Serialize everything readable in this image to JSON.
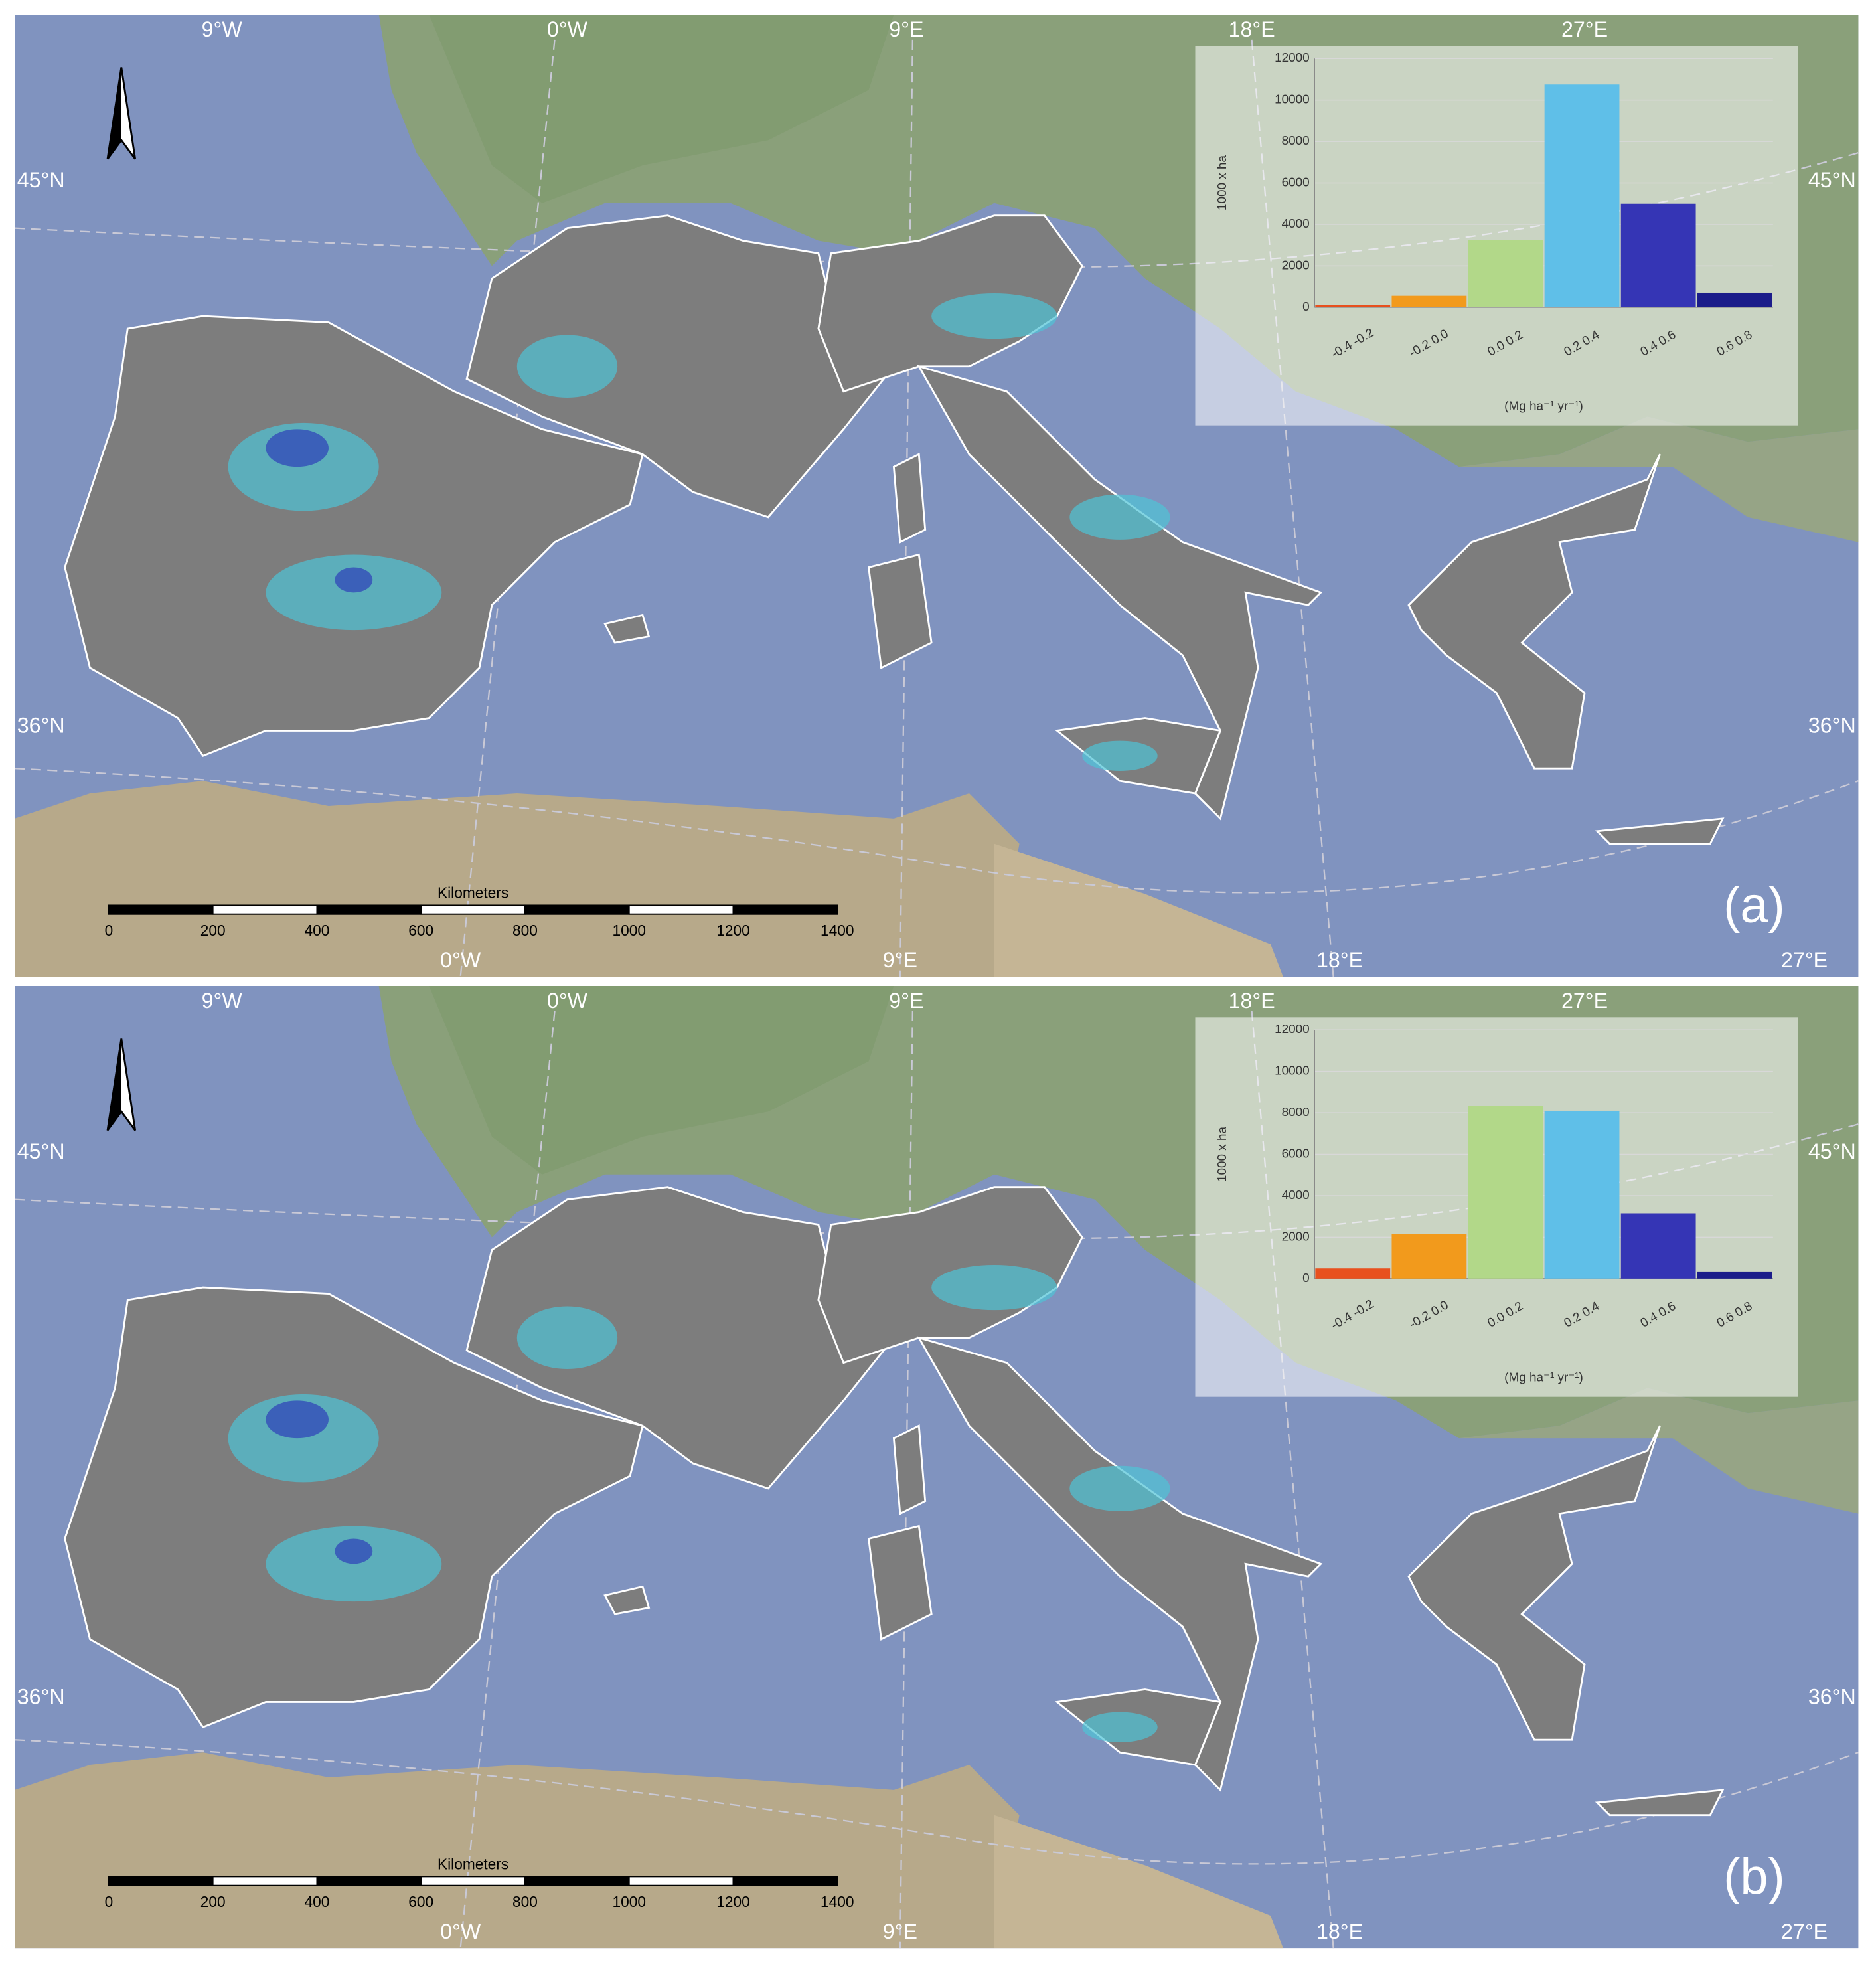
{
  "chart_data": [
    {
      "type": "bar",
      "categories": [
        "-0.4 -0.2",
        "-0.2 0.0",
        "0.0 0.2",
        "0.2 0.4",
        "0.4 0.6",
        "0.6 0.8"
      ],
      "values": [
        100,
        550,
        3250,
        10750,
        5000,
        700
      ],
      "colors": [
        "#e8501e",
        "#f29a1c",
        "#b2d889",
        "#5fbfe8",
        "#3535b5",
        "#1b1c8a"
      ],
      "ylim": [
        0,
        12000
      ],
      "yticks": [
        0,
        2000,
        4000,
        6000,
        8000,
        10000,
        12000
      ],
      "y_label": "1000 x ha",
      "x_label": "(Mg ha⁻¹ yr⁻¹)",
      "grid": true
    },
    {
      "type": "bar",
      "categories": [
        "-0.4 -0.2",
        "-0.2 0.0",
        "0.0 0.2",
        "0.2 0.4",
        "0.4 0.6",
        "0.6 0.8"
      ],
      "values": [
        500,
        2150,
        8350,
        8100,
        3150,
        350
      ],
      "colors": [
        "#e8501e",
        "#f29a1c",
        "#b2d889",
        "#5fbfe8",
        "#3535b5",
        "#1b1c8a"
      ],
      "ylim": [
        0,
        12000
      ],
      "yticks": [
        0,
        2000,
        4000,
        6000,
        8000,
        10000,
        12000
      ],
      "y_label": "1000 x ha",
      "x_label": "(Mg ha⁻¹ yr⁻¹)",
      "grid": true
    }
  ],
  "maps": [
    {
      "panel_label": "(a)",
      "top_longitudes": [
        "9°W",
        "0°W",
        "9°E",
        "18°E",
        "27°E"
      ],
      "bottom_longitudes": [
        "0°W",
        "9°E",
        "18°E",
        "27°E"
      ],
      "left_latitudes": [
        "45°N",
        "36°N"
      ],
      "right_latitudes": [
        "45°N",
        "36°N"
      ],
      "scale_bar": {
        "title": "Kilometers",
        "ticks": [
          0,
          200,
          400,
          600,
          800,
          1000,
          1200,
          1400
        ]
      }
    },
    {
      "panel_label": "(b)",
      "top_longitudes": [
        "9°W",
        "0°W",
        "9°E",
        "18°E",
        "27°E"
      ],
      "bottom_longitudes": [
        "0°W",
        "9°E",
        "18°E",
        "27°E"
      ],
      "left_latitudes": [
        "45°N",
        "36°N"
      ],
      "right_latitudes": [
        "45°N",
        "36°N"
      ],
      "scale_bar": {
        "title": "Kilometers",
        "ticks": [
          0,
          200,
          400,
          600,
          800,
          1000,
          1200,
          1400
        ]
      }
    }
  ]
}
